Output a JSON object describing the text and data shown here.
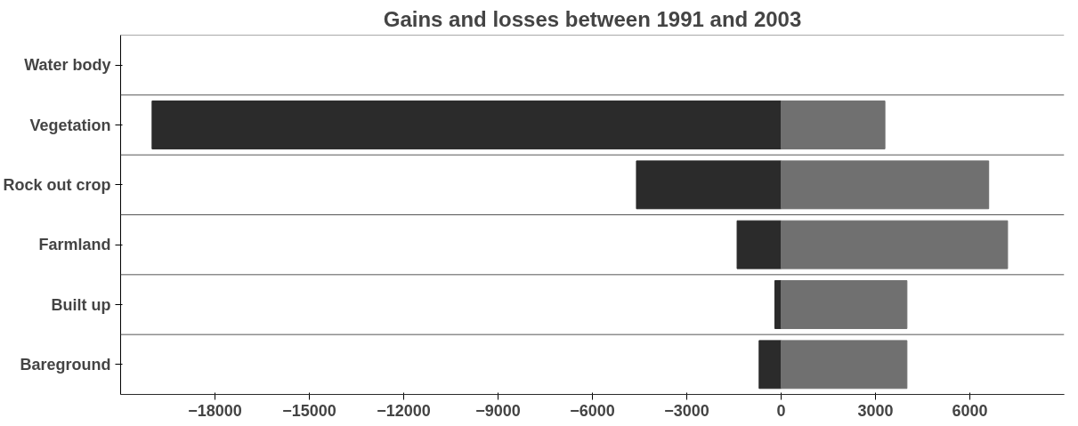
{
  "chart_data": {
    "type": "bar",
    "orientation": "horizontal",
    "title": "Gains and losses between 1991 and 2003",
    "categories": [
      "Water body",
      "Vegetation",
      "Rock out crop",
      "Farmland",
      "Built up",
      "Bareground"
    ],
    "series": [
      {
        "color": "#2b2b2b",
        "values": [
          null,
          -20000,
          -4600,
          -1400,
          -200,
          -700
        ]
      },
      {
        "color": "#707070",
        "values": [
          null,
          3300,
          6600,
          7200,
          4000,
          4000
        ]
      }
    ],
    "xlim": [
      -21000,
      9000
    ],
    "xticks": [
      -18000,
      -15000,
      -12000,
      -9000,
      -6000,
      -3000,
      0,
      3000,
      6000
    ],
    "grid": "y",
    "stacked": true
  }
}
